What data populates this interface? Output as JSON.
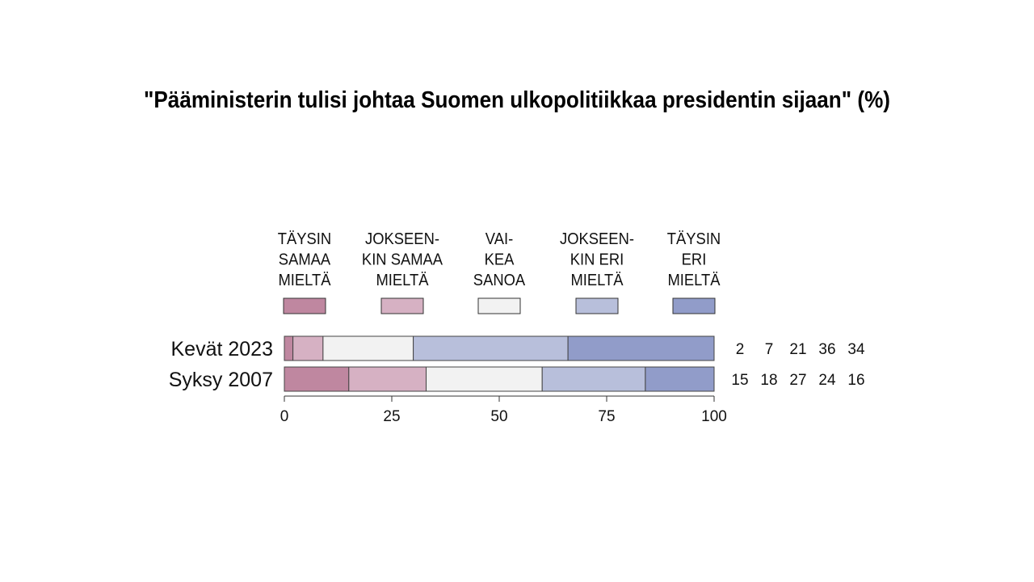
{
  "chart_data": {
    "type": "bar",
    "orientation": "horizontal",
    "stacked": true,
    "title": "\"Pääministerin tulisi johtaa Suomen ulkopolitiikkaa presidentin sijaan\" (%)",
    "categories": [
      "Kevät 2023",
      "Syksy 2007"
    ],
    "series": [
      {
        "name": "TÄYSIN SAMAA MIELTÄ",
        "lines": [
          "TÄYSIN",
          "SAMAA",
          "MIELTÄ"
        ],
        "color": "#BF87A0",
        "values": [
          2,
          15
        ]
      },
      {
        "name": "JOKSEEN-KIN SAMAA MIELTÄ",
        "lines": [
          "JOKSEEN-",
          "KIN SAMAA",
          "MIELTÄ"
        ],
        "color": "#D6B1C3",
        "values": [
          7,
          18
        ]
      },
      {
        "name": "VAI-KEA SANOA",
        "lines": [
          "VAI-",
          "KEA",
          "SANOA"
        ],
        "color": "#F2F2F2",
        "values": [
          21,
          27
        ]
      },
      {
        "name": "JOKSEEN-KIN ERI MIELTÄ",
        "lines": [
          "JOKSEEN-",
          "KIN ERI",
          "MIELTÄ"
        ],
        "color": "#B8BFDB",
        "values": [
          36,
          24
        ]
      },
      {
        "name": "TÄYSIN ERI MIELTÄ",
        "lines": [
          "TÄYSIN",
          "ERI",
          "MIELTÄ"
        ],
        "color": "#919CC9",
        "values": [
          34,
          16
        ]
      }
    ],
    "xlim": [
      0,
      100
    ],
    "xticks": [
      "0",
      "25",
      "50",
      "75",
      "100"
    ],
    "xlabel": "",
    "ylabel": "",
    "legend_position": "top",
    "grid": false
  }
}
